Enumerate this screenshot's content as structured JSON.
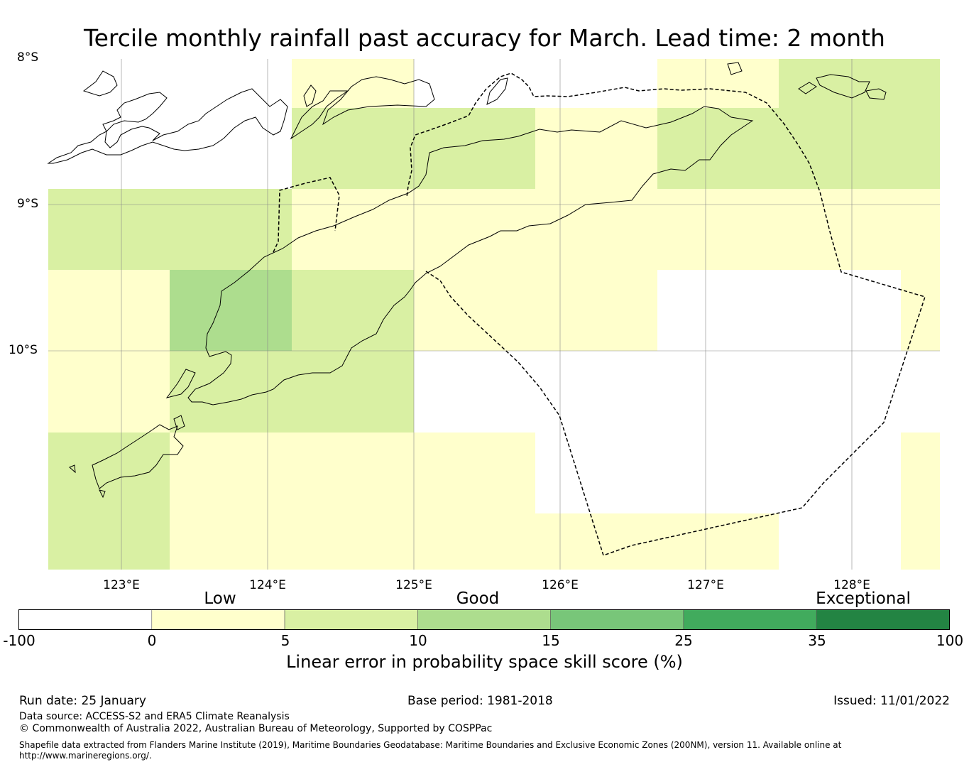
{
  "title": "Tercile monthly rainfall past accuracy for March. Lead time: 2 month",
  "map": {
    "lat_labels": [
      "8°S",
      "9°S",
      "10°S"
    ],
    "lon_labels": [
      "123°E",
      "124°E",
      "125°E",
      "126°E",
      "127°E",
      "128°E"
    ],
    "lat_range_deg_south": [
      8.0,
      11.5
    ],
    "lon_range_deg_east": [
      122.5,
      128.6
    ],
    "grid_cell_deg": [
      0.83,
      0.55
    ],
    "colors": {
      "no_data": "#ffffff",
      "0_5": "#ffffcc",
      "5_10": "#d9f0a3",
      "10_15": "#addd8e"
    }
  },
  "colorbar": {
    "categories": [
      "Low",
      "Good",
      "Exceptional"
    ],
    "ticks": [
      "-100",
      "0",
      "5",
      "10",
      "15",
      "25",
      "35",
      "100"
    ],
    "colors": [
      "#ffffff",
      "#ffffcc",
      "#d9f0a3",
      "#addd8e",
      "#78c679",
      "#41ab5d",
      "#238443"
    ],
    "label": "Linear error in probability space skill score (%)"
  },
  "footer": {
    "run_date": "Run date: 25 January",
    "base_period": "Base period: 1981-2018",
    "issued": "Issued: 11/01/2022",
    "data_source": "Data source: ACCESS-S2 and ERA5 Climate Reanalysis",
    "copyright": "© Commonwealth of Australia 2022, Australian Bureau of Meteorology, Supported by COSPPac",
    "shapefile": "Shapefile data extracted from Flanders Marine Institute (2019), Maritime Boundaries Geodatabase: Maritime Boundaries and Exclusive Economic Zones (200NM), version 11. Available online at http://www.marineregions.org/."
  }
}
